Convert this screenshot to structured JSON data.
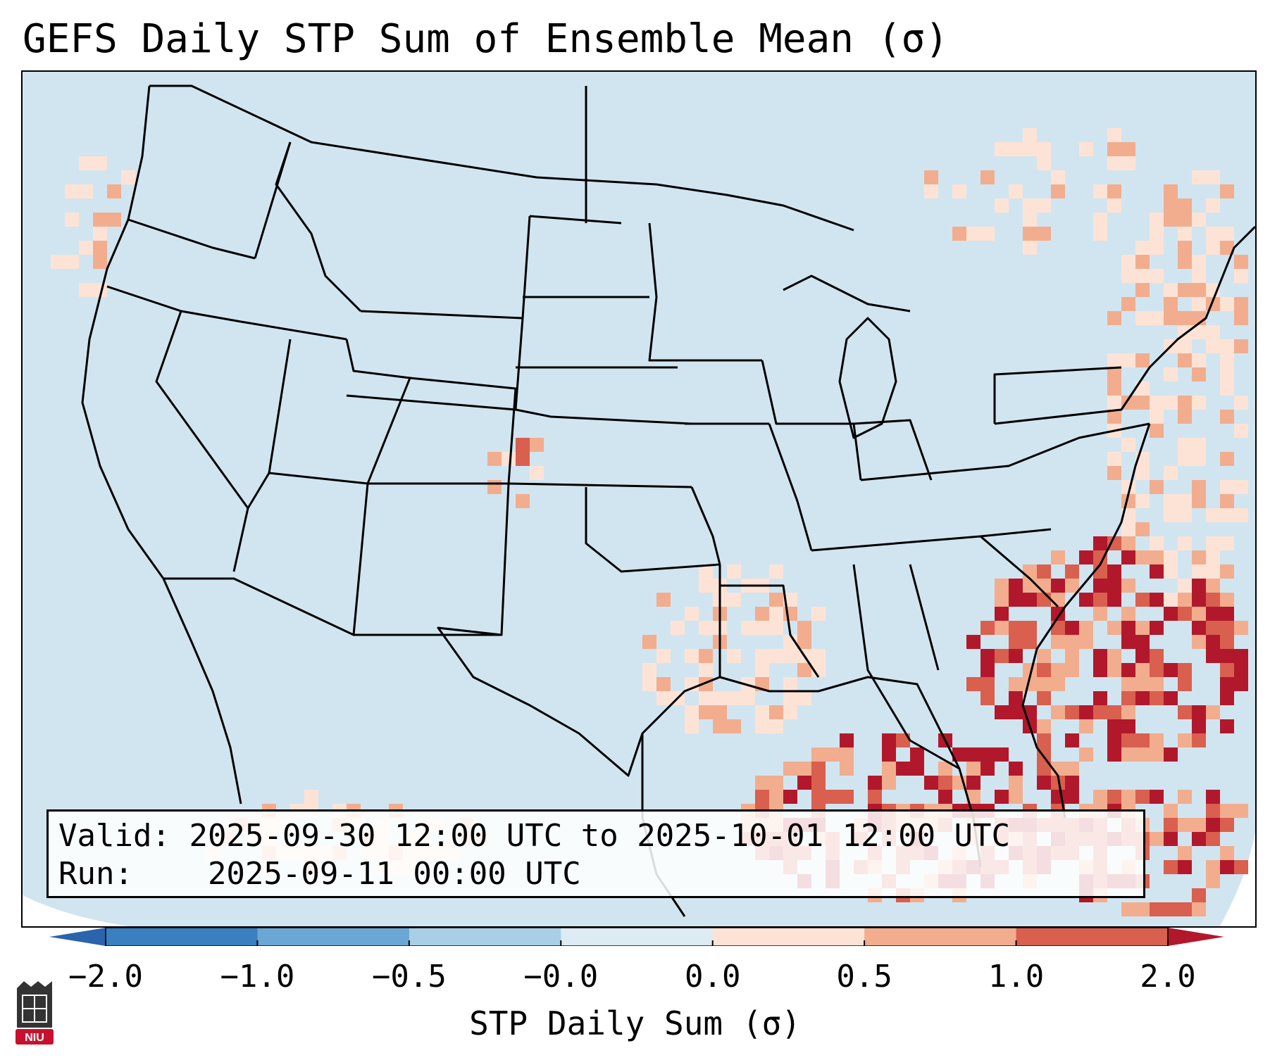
{
  "title": "GEFS Daily STP Sum of Ensemble Mean (σ)",
  "info": {
    "valid_label": "Valid:",
    "valid_value": "2025-09-30 12:00 UTC to 2025-10-01 12:00 UTC",
    "run_label": "Run:",
    "run_value": "2025-09-11 00:00 UTC"
  },
  "colorbar": {
    "label": "STP Daily Sum (σ)",
    "ticks": [
      "−2.0",
      "−1.0",
      "−0.5",
      "−0.0",
      "0.0",
      "0.5",
      "1.0",
      "2.0"
    ],
    "bins": [
      {
        "color": "#3a7fbf"
      },
      {
        "color": "#6aa7d4"
      },
      {
        "color": "#a9cfe6"
      },
      {
        "color": "#ddebf3"
      },
      {
        "color": "#fde3d6"
      },
      {
        "color": "#f2ad8e"
      },
      {
        "color": "#d95f4e"
      }
    ],
    "under_color": "#2a64ad",
    "over_color": "#b2182b"
  },
  "map": {
    "background_color": "#d1e5f0",
    "border_color": "#000000"
  },
  "logo": {
    "text": "NIU",
    "color": "#c8102e"
  }
}
